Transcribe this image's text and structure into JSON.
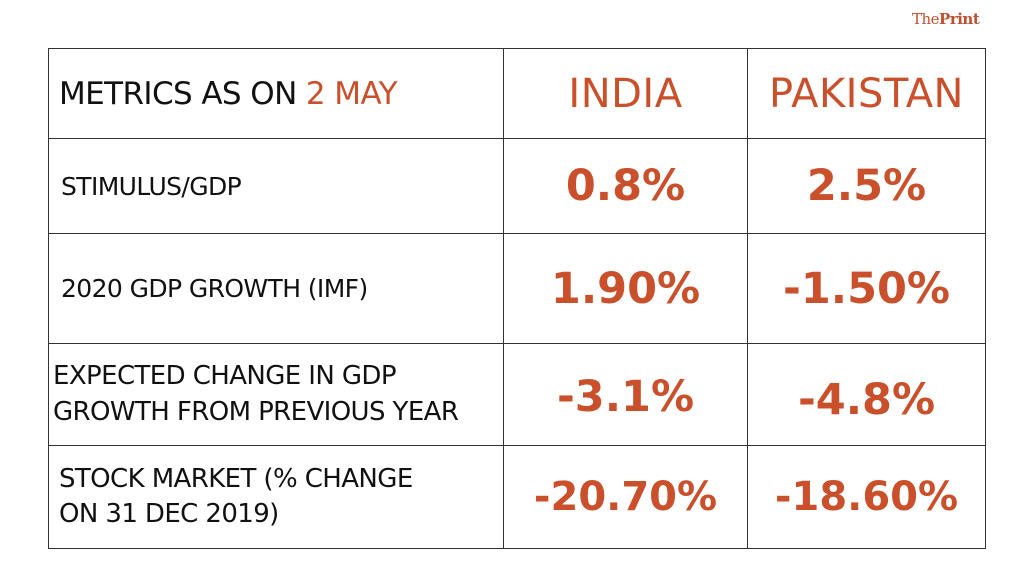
{
  "brand": {
    "prefix": "The",
    "name": "Print"
  },
  "chart_data": {
    "type": "table",
    "title_prefix": "METRICS AS ON ",
    "title_date": "2 MAY",
    "columns": [
      "INDIA",
      "PAKISTAN"
    ],
    "rows": [
      {
        "label": "STIMULUS/GDP",
        "values": [
          "0.8%",
          "2.5%"
        ]
      },
      {
        "label": "2020 GDP GROWTH (IMF)",
        "values": [
          "1.90%",
          "-1.50%"
        ]
      },
      {
        "label_lines": [
          "EXPECTED CHANGE IN GDP",
          "GROWTH FROM PREVIOUS YEAR"
        ],
        "values": [
          "-3.1%",
          "-4.8%"
        ]
      },
      {
        "label_lines": [
          "STOCK MARKET (% CHANGE",
          "ON 31 DEC 2019)"
        ],
        "values": [
          "-20.70%",
          "-18.60%"
        ]
      }
    ]
  }
}
